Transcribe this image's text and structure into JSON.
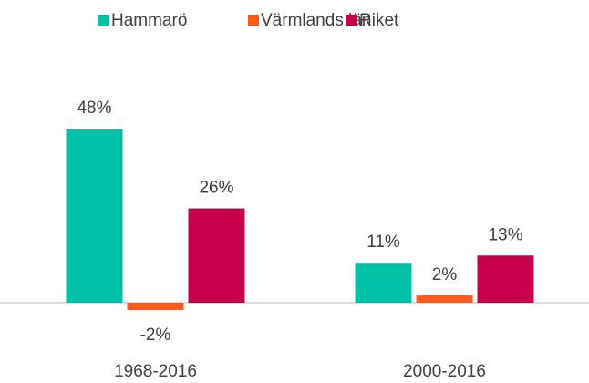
{
  "chart_data": {
    "type": "bar",
    "categories": [
      "1968-2016",
      "2000-2016"
    ],
    "series": [
      {
        "name": "Hammarö",
        "color": "#00c0a6",
        "values": [
          48,
          11
        ],
        "value_labels": [
          "48%",
          "11%"
        ]
      },
      {
        "name": "Värmlands län",
        "color": "#ff5a1e",
        "values": [
          -2,
          2
        ],
        "value_labels": [
          "-2%",
          "2%"
        ]
      },
      {
        "name": "Riket",
        "color": "#c8004b",
        "values": [
          26,
          13
        ],
        "value_labels": [
          "26%",
          "13%"
        ]
      }
    ],
    "legend": "top"
  }
}
